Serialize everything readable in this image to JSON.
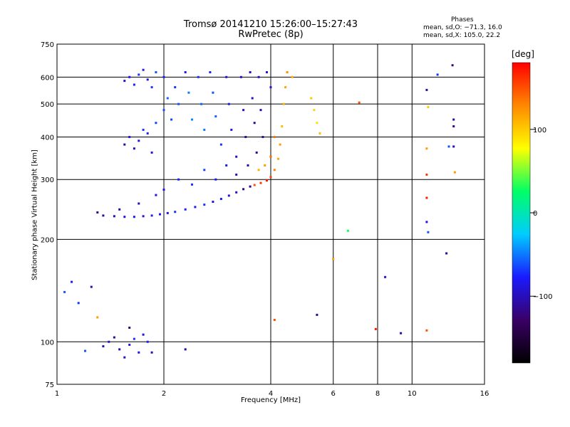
{
  "header": {
    "title_line1": "Tromsø 20141210 15:26:00–15:27:43",
    "title_line2": "RwPretec (8p)",
    "phase_heading": "Phases",
    "stat_line_0": "mean, sd,O: −71.3, 16.0",
    "stat_line_1": "mean, sd,X: 105.0, 22.2"
  },
  "colorbar": {
    "unit": "[deg]",
    "ticks": [
      "100",
      "0",
      "−100"
    ],
    "range": [
      -180,
      180
    ],
    "colors": [
      "#000000",
      "#3a0066",
      "#1a1aff",
      "#00ccff",
      "#00ff66",
      "#ffff00",
      "#ff8800",
      "#ff0000"
    ]
  },
  "chart_data": {
    "type": "scatter",
    "x_scale": "log",
    "y_scale": "log",
    "xlabel": "Frequency [MHz]",
    "ylabel": "Stationary phase Virtual Height [km]",
    "xlim": [
      1,
      16
    ],
    "ylim": [
      75,
      750
    ],
    "grid": true,
    "x_ticks": [
      1,
      2,
      4,
      6,
      8,
      10,
      16
    ],
    "x_tick_labels": [
      "1",
      "2",
      "4",
      "6",
      "8",
      "10",
      "16"
    ],
    "y_ticks": [
      75,
      100,
      200,
      300,
      400,
      500,
      600,
      750
    ],
    "y_tick_labels": [
      "75",
      "100",
      "200",
      "300",
      "400",
      "500",
      "600",
      "750"
    ],
    "color_encoding": "phase [deg]",
    "points": [
      {
        "x": 1.35,
        "y": 235,
        "phase": -110
      },
      {
        "x": 1.45,
        "y": 234,
        "phase": -100
      },
      {
        "x": 1.55,
        "y": 233,
        "phase": -90
      },
      {
        "x": 1.65,
        "y": 233,
        "phase": -80
      },
      {
        "x": 1.75,
        "y": 234,
        "phase": -85
      },
      {
        "x": 1.85,
        "y": 235,
        "phase": -75
      },
      {
        "x": 1.95,
        "y": 237,
        "phase": -80
      },
      {
        "x": 2.05,
        "y": 239,
        "phase": -90
      },
      {
        "x": 2.15,
        "y": 241,
        "phase": -70
      },
      {
        "x": 2.3,
        "y": 245,
        "phase": -75
      },
      {
        "x": 2.45,
        "y": 249,
        "phase": -80
      },
      {
        "x": 2.6,
        "y": 253,
        "phase": -70
      },
      {
        "x": 2.75,
        "y": 258,
        "phase": -85
      },
      {
        "x": 2.9,
        "y": 263,
        "phase": -75
      },
      {
        "x": 3.05,
        "y": 269,
        "phase": -90
      },
      {
        "x": 3.2,
        "y": 275,
        "phase": -95
      },
      {
        "x": 3.35,
        "y": 281,
        "phase": -110
      },
      {
        "x": 3.5,
        "y": 286,
        "phase": -120
      },
      {
        "x": 3.6,
        "y": 289,
        "phase": 150
      },
      {
        "x": 3.75,
        "y": 293,
        "phase": 160
      },
      {
        "x": 3.9,
        "y": 298,
        "phase": 170
      },
      {
        "x": 4.0,
        "y": 305,
        "phase": 155
      },
      {
        "x": 4.1,
        "y": 320,
        "phase": 130
      },
      {
        "x": 4.2,
        "y": 345,
        "phase": 115
      },
      {
        "x": 4.25,
        "y": 380,
        "phase": 120
      },
      {
        "x": 4.3,
        "y": 430,
        "phase": 105
      },
      {
        "x": 4.35,
        "y": 500,
        "phase": 110
      },
      {
        "x": 4.4,
        "y": 560,
        "phase": 115
      },
      {
        "x": 4.45,
        "y": 620,
        "phase": 125
      },
      {
        "x": 4.1,
        "y": 400,
        "phase": 135
      },
      {
        "x": 4.0,
        "y": 350,
        "phase": 140
      },
      {
        "x": 3.85,
        "y": 330,
        "phase": 120
      },
      {
        "x": 3.7,
        "y": 320,
        "phase": 110
      },
      {
        "x": 5.3,
        "y": 480,
        "phase": 95
      },
      {
        "x": 5.4,
        "y": 440,
        "phase": 90
      },
      {
        "x": 5.2,
        "y": 520,
        "phase": 100
      },
      {
        "x": 5.5,
        "y": 410,
        "phase": 105
      },
      {
        "x": 4.6,
        "y": 600,
        "phase": 110
      },
      {
        "x": 1.6,
        "y": 600,
        "phase": -80
      },
      {
        "x": 1.7,
        "y": 610,
        "phase": -70
      },
      {
        "x": 1.8,
        "y": 590,
        "phase": -90
      },
      {
        "x": 1.65,
        "y": 570,
        "phase": -75
      },
      {
        "x": 1.75,
        "y": 630,
        "phase": -85
      },
      {
        "x": 1.9,
        "y": 620,
        "phase": -60
      },
      {
        "x": 1.55,
        "y": 585,
        "phase": -95
      },
      {
        "x": 1.85,
        "y": 560,
        "phase": -70
      },
      {
        "x": 1.6,
        "y": 400,
        "phase": -80
      },
      {
        "x": 1.7,
        "y": 390,
        "phase": -90
      },
      {
        "x": 1.8,
        "y": 410,
        "phase": -75
      },
      {
        "x": 1.65,
        "y": 370,
        "phase": -100
      },
      {
        "x": 1.75,
        "y": 420,
        "phase": -70
      },
      {
        "x": 1.9,
        "y": 440,
        "phase": -65
      },
      {
        "x": 1.55,
        "y": 380,
        "phase": -110
      },
      {
        "x": 1.85,
        "y": 360,
        "phase": -85
      },
      {
        "x": 2.0,
        "y": 480,
        "phase": -60
      },
      {
        "x": 2.05,
        "y": 520,
        "phase": -55
      },
      {
        "x": 2.1,
        "y": 450,
        "phase": -65
      },
      {
        "x": 2.15,
        "y": 560,
        "phase": -70
      },
      {
        "x": 2.2,
        "y": 500,
        "phase": -60
      },
      {
        "x": 2.0,
        "y": 600,
        "phase": -75
      },
      {
        "x": 2.3,
        "y": 620,
        "phase": -80
      },
      {
        "x": 2.35,
        "y": 540,
        "phase": -50
      },
      {
        "x": 2.4,
        "y": 450,
        "phase": -45
      },
      {
        "x": 2.5,
        "y": 600,
        "phase": -70
      },
      {
        "x": 2.55,
        "y": 500,
        "phase": -55
      },
      {
        "x": 2.6,
        "y": 420,
        "phase": -50
      },
      {
        "x": 2.7,
        "y": 620,
        "phase": -75
      },
      {
        "x": 2.75,
        "y": 540,
        "phase": -60
      },
      {
        "x": 2.8,
        "y": 460,
        "phase": -55
      },
      {
        "x": 2.9,
        "y": 380,
        "phase": -70
      },
      {
        "x": 3.0,
        "y": 600,
        "phase": -90
      },
      {
        "x": 3.05,
        "y": 500,
        "phase": -80
      },
      {
        "x": 3.1,
        "y": 420,
        "phase": -85
      },
      {
        "x": 3.2,
        "y": 350,
        "phase": -100
      },
      {
        "x": 3.3,
        "y": 600,
        "phase": -95
      },
      {
        "x": 3.35,
        "y": 480,
        "phase": -90
      },
      {
        "x": 3.4,
        "y": 400,
        "phase": -105
      },
      {
        "x": 3.45,
        "y": 330,
        "phase": -110
      },
      {
        "x": 3.5,
        "y": 620,
        "phase": -100
      },
      {
        "x": 3.55,
        "y": 520,
        "phase": -95
      },
      {
        "x": 3.6,
        "y": 440,
        "phase": -110
      },
      {
        "x": 3.65,
        "y": 360,
        "phase": -115
      },
      {
        "x": 3.7,
        "y": 600,
        "phase": -95
      },
      {
        "x": 3.75,
        "y": 480,
        "phase": -100
      },
      {
        "x": 3.8,
        "y": 400,
        "phase": -105
      },
      {
        "x": 3.9,
        "y": 620,
        "phase": -85
      },
      {
        "x": 4.0,
        "y": 560,
        "phase": -90
      },
      {
        "x": 2.2,
        "y": 300,
        "phase": -75
      },
      {
        "x": 2.4,
        "y": 290,
        "phase": -70
      },
      {
        "x": 2.6,
        "y": 320,
        "phase": -65
      },
      {
        "x": 2.8,
        "y": 300,
        "phase": -80
      },
      {
        "x": 3.0,
        "y": 330,
        "phase": -85
      },
      {
        "x": 3.2,
        "y": 310,
        "phase": -100
      },
      {
        "x": 1.9,
        "y": 270,
        "phase": -90
      },
      {
        "x": 2.0,
        "y": 280,
        "phase": -85
      },
      {
        "x": 1.7,
        "y": 255,
        "phase": -100
      },
      {
        "x": 1.5,
        "y": 245,
        "phase": -110
      },
      {
        "x": 1.3,
        "y": 240,
        "phase": -115
      },
      {
        "x": 1.1,
        "y": 150,
        "phase": -80
      },
      {
        "x": 1.15,
        "y": 130,
        "phase": -70
      },
      {
        "x": 1.25,
        "y": 145,
        "phase": -100
      },
      {
        "x": 1.05,
        "y": 140,
        "phase": -60
      },
      {
        "x": 1.4,
        "y": 100,
        "phase": -90
      },
      {
        "x": 1.5,
        "y": 95,
        "phase": -100
      },
      {
        "x": 1.6,
        "y": 98,
        "phase": -80
      },
      {
        "x": 1.45,
        "y": 103,
        "phase": -110
      },
      {
        "x": 1.55,
        "y": 90,
        "phase": -95
      },
      {
        "x": 1.65,
        "y": 102,
        "phase": -70
      },
      {
        "x": 1.7,
        "y": 93,
        "phase": -85
      },
      {
        "x": 1.35,
        "y": 97,
        "phase": -105
      },
      {
        "x": 1.8,
        "y": 100,
        "phase": -75
      },
      {
        "x": 1.75,
        "y": 105,
        "phase": -90
      },
      {
        "x": 1.2,
        "y": 94,
        "phase": -60
      },
      {
        "x": 1.3,
        "y": 118,
        "phase": 120
      },
      {
        "x": 1.85,
        "y": 93,
        "phase": -100
      },
      {
        "x": 1.6,
        "y": 110,
        "phase": -120
      },
      {
        "x": 2.3,
        "y": 95,
        "phase": -110
      },
      {
        "x": 4.1,
        "y": 116,
        "phase": 150
      },
      {
        "x": 5.4,
        "y": 120,
        "phase": -110
      },
      {
        "x": 6.6,
        "y": 212,
        "phase": 30
      },
      {
        "x": 6.0,
        "y": 175,
        "phase": 120
      },
      {
        "x": 7.1,
        "y": 505,
        "phase": 150
      },
      {
        "x": 7.9,
        "y": 109,
        "phase": 170
      },
      {
        "x": 8.4,
        "y": 155,
        "phase": -90
      },
      {
        "x": 9.3,
        "y": 106,
        "phase": -110
      },
      {
        "x": 11.0,
        "y": 108,
        "phase": 150
      },
      {
        "x": 11.0,
        "y": 550,
        "phase": -110
      },
      {
        "x": 11.1,
        "y": 490,
        "phase": 100
      },
      {
        "x": 11.0,
        "y": 265,
        "phase": 170
      },
      {
        "x": 11.0,
        "y": 225,
        "phase": -90
      },
      {
        "x": 11.1,
        "y": 210,
        "phase": -60
      },
      {
        "x": 11.0,
        "y": 310,
        "phase": 160
      },
      {
        "x": 11.0,
        "y": 370,
        "phase": 120
      },
      {
        "x": 11.8,
        "y": 610,
        "phase": -70
      },
      {
        "x": 12.5,
        "y": 182,
        "phase": -110
      },
      {
        "x": 13.0,
        "y": 650,
        "phase": -120
      },
      {
        "x": 13.1,
        "y": 450,
        "phase": -110
      },
      {
        "x": 13.1,
        "y": 430,
        "phase": -115
      },
      {
        "x": 13.1,
        "y": 375,
        "phase": -100
      },
      {
        "x": 13.2,
        "y": 315,
        "phase": 120
      },
      {
        "x": 12.7,
        "y": 375,
        "phase": -60
      }
    ]
  }
}
